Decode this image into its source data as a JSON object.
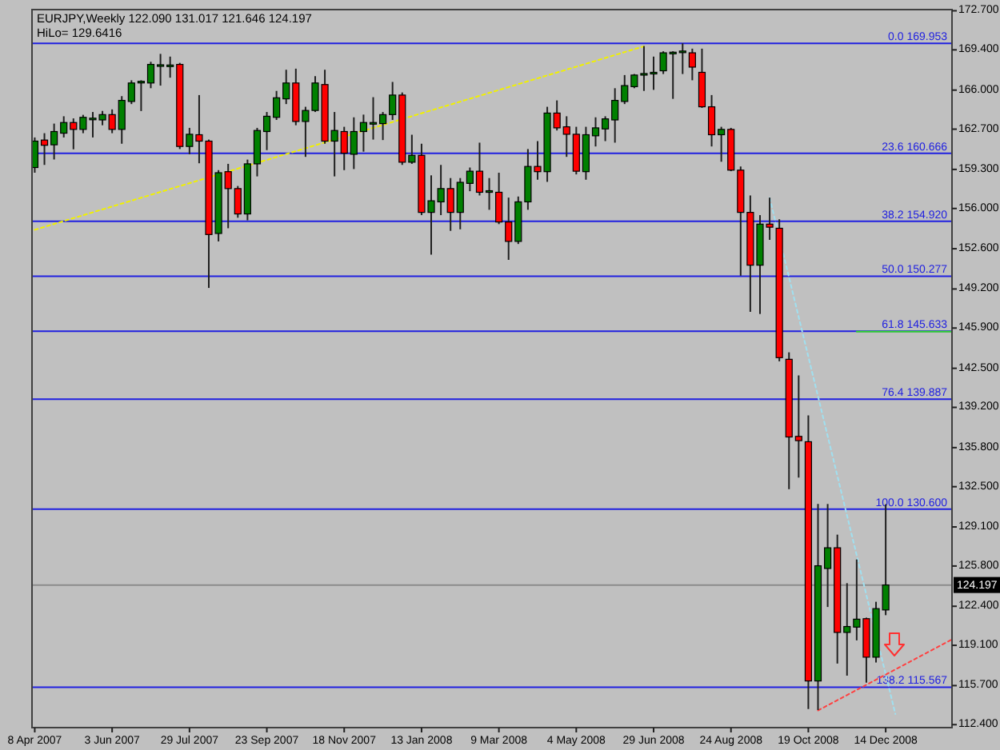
{
  "chart_data": {
    "type": "candlestick",
    "title": "EURJPY,Weekly 122.090 131.017 121.646 124.197",
    "subtitle": "HiLo= 129.6416",
    "x": [
      "2007-04-08",
      "2007-04-15",
      "2007-04-22",
      "2007-04-29",
      "2007-05-06",
      "2007-05-13",
      "2007-05-20",
      "2007-05-27",
      "2007-06-03",
      "2007-06-10",
      "2007-06-17",
      "2007-06-24",
      "2007-07-01",
      "2007-07-08",
      "2007-07-15",
      "2007-07-22",
      "2007-07-29",
      "2007-08-05",
      "2007-08-12",
      "2007-08-19",
      "2007-08-26",
      "2007-09-02",
      "2007-09-09",
      "2007-09-16",
      "2007-09-23",
      "2007-09-30",
      "2007-10-07",
      "2007-10-14",
      "2007-10-21",
      "2007-10-28",
      "2007-11-04",
      "2007-11-11",
      "2007-11-18",
      "2007-11-25",
      "2007-12-02",
      "2007-12-09",
      "2007-12-16",
      "2007-12-23",
      "2007-12-30",
      "2008-01-06",
      "2008-01-13",
      "2008-01-20",
      "2008-01-27",
      "2008-02-03",
      "2008-02-10",
      "2008-02-17",
      "2008-02-24",
      "2008-03-02",
      "2008-03-09",
      "2008-03-16",
      "2008-03-23",
      "2008-03-30",
      "2008-04-06",
      "2008-04-13",
      "2008-04-20",
      "2008-04-27",
      "2008-05-04",
      "2008-05-11",
      "2008-05-18",
      "2008-05-25",
      "2008-06-01",
      "2008-06-08",
      "2008-06-15",
      "2008-06-22",
      "2008-06-29",
      "2008-07-06",
      "2008-07-13",
      "2008-07-20",
      "2008-07-27",
      "2008-08-03",
      "2008-08-10",
      "2008-08-17",
      "2008-08-24",
      "2008-08-31",
      "2008-09-07",
      "2008-09-14",
      "2008-09-21",
      "2008-09-28",
      "2008-10-05",
      "2008-10-12",
      "2008-10-19",
      "2008-10-26",
      "2008-11-02",
      "2008-11-09",
      "2008-11-16",
      "2008-11-23",
      "2008-11-30",
      "2008-12-07",
      "2008-12-14"
    ],
    "ohlc": [
      [
        159.46,
        162.0,
        159.02,
        161.69
      ],
      [
        161.78,
        162.36,
        159.68,
        161.34
      ],
      [
        161.38,
        163.17,
        160.14,
        162.5
      ],
      [
        162.36,
        163.79,
        162.0,
        163.26
      ],
      [
        163.26,
        163.61,
        161.0,
        162.68
      ],
      [
        162.68,
        163.91,
        162.36,
        163.7
      ],
      [
        163.55,
        164.15,
        162.0,
        163.63
      ],
      [
        163.48,
        164.24,
        163.03,
        163.93
      ],
      [
        163.93,
        164.37,
        162.36,
        162.68
      ],
      [
        162.68,
        165.49,
        161.47,
        165.13
      ],
      [
        165.04,
        166.83,
        164.82,
        166.6
      ],
      [
        166.69,
        166.83,
        164.23,
        166.74
      ],
      [
        166.6,
        168.39,
        166.16,
        168.17
      ],
      [
        168.1,
        169.06,
        166.38,
        168.14
      ],
      [
        168.08,
        168.83,
        167.05,
        168.12
      ],
      [
        168.17,
        168.3,
        161.02,
        161.24
      ],
      [
        161.24,
        162.81,
        160.58,
        162.27
      ],
      [
        162.23,
        165.58,
        159.82,
        161.69
      ],
      [
        161.69,
        161.82,
        149.29,
        153.8
      ],
      [
        153.89,
        159.24,
        153.22,
        159.02
      ],
      [
        159.11,
        159.77,
        154.33,
        157.68
      ],
      [
        157.68,
        157.9,
        155.22,
        155.54
      ],
      [
        155.54,
        160.13,
        155.0,
        159.77
      ],
      [
        159.77,
        162.81,
        158.71,
        162.59
      ],
      [
        162.5,
        164.15,
        160.93,
        163.79
      ],
      [
        163.7,
        165.93,
        163.48,
        165.35
      ],
      [
        165.26,
        167.72,
        164.82,
        166.6
      ],
      [
        166.6,
        167.81,
        163.03,
        163.35
      ],
      [
        163.35,
        164.59,
        160.36,
        164.28
      ],
      [
        164.28,
        167.18,
        164.15,
        166.6
      ],
      [
        166.47,
        167.72,
        161.47,
        161.69
      ],
      [
        161.69,
        164.15,
        158.71,
        162.59
      ],
      [
        162.5,
        162.9,
        159.24,
        160.67
      ],
      [
        160.58,
        163.7,
        159.33,
        162.5
      ],
      [
        162.5,
        163.93,
        160.8,
        163.26
      ],
      [
        163.2,
        165.4,
        161.82,
        163.26
      ],
      [
        163.17,
        164.15,
        161.78,
        163.93
      ],
      [
        163.93,
        166.69,
        163.48,
        165.58
      ],
      [
        165.58,
        165.8,
        159.68,
        159.91
      ],
      [
        159.91,
        162.23,
        159.77,
        160.49
      ],
      [
        160.49,
        161.47,
        155.44,
        155.67
      ],
      [
        155.67,
        158.8,
        152.1,
        156.65
      ],
      [
        156.56,
        159.68,
        155.44,
        157.68
      ],
      [
        157.68,
        158.57,
        154.11,
        155.67
      ],
      [
        155.67,
        158.57,
        154.24,
        158.21
      ],
      [
        158.12,
        159.46,
        157.46,
        159.15
      ],
      [
        159.15,
        161.56,
        157.1,
        157.37
      ],
      [
        157.46,
        158.57,
        155.89,
        157.5
      ],
      [
        157.37,
        159.02,
        154.68,
        154.86
      ],
      [
        154.86,
        156.92,
        151.66,
        153.22
      ],
      [
        153.22,
        157.01,
        153.0,
        156.56
      ],
      [
        156.56,
        161.02,
        155.89,
        159.55
      ],
      [
        159.55,
        161.69,
        158.43,
        159.11
      ],
      [
        159.11,
        164.59,
        158.25,
        164.06
      ],
      [
        164.06,
        165.13,
        162.59,
        162.81
      ],
      [
        162.9,
        163.79,
        160.36,
        162.27
      ],
      [
        162.27,
        162.9,
        158.88,
        159.15
      ],
      [
        159.11,
        162.9,
        158.43,
        162.23
      ],
      [
        162.14,
        163.7,
        161.24,
        162.81
      ],
      [
        162.72,
        163.79,
        161.69,
        163.57
      ],
      [
        163.48,
        166.16,
        161.56,
        165.13
      ],
      [
        165.04,
        167.27,
        164.82,
        166.38
      ],
      [
        166.29,
        167.36,
        166.16,
        167.27
      ],
      [
        167.33,
        169.72,
        165.93,
        167.4
      ],
      [
        167.45,
        168.83,
        166.02,
        167.5
      ],
      [
        167.63,
        169.28,
        167.36,
        169.15
      ],
      [
        169.15,
        169.28,
        165.26,
        169.2
      ],
      [
        169.25,
        169.95,
        167.36,
        169.3
      ],
      [
        169.15,
        169.5,
        166.83,
        167.94
      ],
      [
        167.5,
        169.5,
        164.5,
        164.59
      ],
      [
        164.59,
        165.58,
        161.24,
        162.23
      ],
      [
        162.23,
        162.9,
        159.95,
        162.68
      ],
      [
        162.68,
        162.81,
        159.15,
        159.24
      ],
      [
        159.24,
        159.55,
        150.32,
        155.67
      ],
      [
        155.67,
        157.1,
        147.27,
        151.21
      ],
      [
        151.21,
        155.44,
        147.09,
        154.68
      ],
      [
        154.68,
        156.92,
        153.35,
        154.42
      ],
      [
        154.33,
        155.09,
        143.09,
        143.4
      ],
      [
        143.26,
        143.85,
        132.29,
        136.7
      ],
      [
        136.75,
        141.9,
        133.27,
        136.39
      ],
      [
        136.3,
        138.53,
        113.72,
        116.09
      ],
      [
        116.09,
        131.04,
        113.63,
        125.82
      ],
      [
        125.59,
        131.04,
        122.34,
        127.34
      ],
      [
        127.34,
        128.45,
        117.56,
        120.19
      ],
      [
        120.19,
        124.35,
        116.54,
        120.69
      ],
      [
        120.64,
        126.35,
        119.52,
        121.31
      ],
      [
        121.35,
        121.44,
        115.95,
        118.1
      ],
      [
        118.1,
        122.78,
        117.65,
        122.2
      ],
      [
        122.09,
        131.017,
        121.646,
        124.197
      ]
    ],
    "colors": [
      "#008000",
      "#ff0000",
      "#008000",
      "#008000",
      "#ff0000",
      "#008000",
      "#008000",
      "#008000",
      "#ff0000",
      "#008000",
      "#008000",
      "#008000",
      "#008000",
      "#008000",
      "#008000",
      "#ff0000",
      "#008000",
      "#ff0000",
      "#ff0000",
      "#008000",
      "#ff0000",
      "#ff0000",
      "#008000",
      "#008000",
      "#008000",
      "#008000",
      "#008000",
      "#ff0000",
      "#008000",
      "#008000",
      "#ff0000",
      "#008000",
      "#ff0000",
      "#008000",
      "#008000",
      "#008000",
      "#008000",
      "#008000",
      "#ff0000",
      "#008000",
      "#ff0000",
      "#008000",
      "#008000",
      "#ff0000",
      "#008000",
      "#008000",
      "#ff0000",
      "#008000",
      "#ff0000",
      "#ff0000",
      "#008000",
      "#008000",
      "#ff0000",
      "#008000",
      "#ff0000",
      "#ff0000",
      "#ff0000",
      "#008000",
      "#008000",
      "#008000",
      "#008000",
      "#008000",
      "#008000",
      "#008000",
      "#008000",
      "#008000",
      "#008000",
      "#008000",
      "#ff0000",
      "#ff0000",
      "#ff0000",
      "#008000",
      "#ff0000",
      "#ff0000",
      "#ff0000",
      "#008000",
      "#ff0000",
      "#ff0000",
      "#ff0000",
      "#ff0000",
      "#ff0000",
      "#008000",
      "#008000",
      "#ff0000",
      "#008000",
      "#008000",
      "#ff0000",
      "#008000",
      "#008000"
    ],
    "series": [
      {
        "type": "line",
        "x": [
          "2007-04-08",
          "2008-06-22"
        ],
        "values": [
          154.2,
          169.7
        ],
        "color": "#f0f000",
        "line_style": "dotted"
      },
      {
        "type": "line",
        "x": [
          "2008-09-21",
          "2008-12-21"
        ],
        "values": [
          156.9,
          113.3
        ],
        "color": "#a0e0f0",
        "line_style": "dotted"
      },
      {
        "type": "line",
        "x": [
          "2008-10-26",
          "2009-01-31"
        ],
        "values": [
          113.6,
          119.6
        ],
        "color": "#ff4040",
        "line_style": "dotted"
      },
      {
        "type": "line",
        "x": [
          "2008-11-23",
          "2009-01-31"
        ],
        "values": [
          145.6,
          145.6
        ],
        "color": "#30d030",
        "line_style": "solid"
      }
    ],
    "xlim": [
      "2007-04-06",
      "2009-01-31"
    ],
    "ylim": [
      112.15,
      172.8
    ],
    "xticks": [
      {
        "value": "2007-04-08",
        "label": "8 Apr 2007"
      },
      {
        "value": "2007-06-03",
        "label": "3 Jun 2007"
      },
      {
        "value": "2007-07-29",
        "label": "29 Jul 2007"
      },
      {
        "value": "2007-09-23",
        "label": "23 Sep 2007"
      },
      {
        "value": "2007-11-18",
        "label": "18 Nov 2007"
      },
      {
        "value": "2008-01-13",
        "label": "13 Jan 2008"
      },
      {
        "value": "2008-03-09",
        "label": "9 Mar 2008"
      },
      {
        "value": "2008-05-04",
        "label": "4 May 2008"
      },
      {
        "value": "2008-06-29",
        "label": "29 Jun 2008"
      },
      {
        "value": "2008-08-24",
        "label": "24 Aug 2008"
      },
      {
        "value": "2008-10-19",
        "label": "19 Oct 2008"
      },
      {
        "value": "2008-12-14",
        "label": "14 Dec 2008"
      }
    ],
    "yticks": [
      {
        "value": 172.7,
        "label": "172.700"
      },
      {
        "value": 169.4,
        "label": "169.400"
      },
      {
        "value": 166.0,
        "label": "166.000"
      },
      {
        "value": 162.7,
        "label": "162.700"
      },
      {
        "value": 159.3,
        "label": "159.300"
      },
      {
        "value": 156.0,
        "label": "156.000"
      },
      {
        "value": 152.6,
        "label": "152.600"
      },
      {
        "value": 149.2,
        "label": "149.200"
      },
      {
        "value": 145.9,
        "label": "145.900"
      },
      {
        "value": 142.5,
        "label": "142.500"
      },
      {
        "value": 139.2,
        "label": "139.200"
      },
      {
        "value": 135.8,
        "label": "135.800"
      },
      {
        "value": 132.5,
        "label": "132.500"
      },
      {
        "value": 129.1,
        "label": "129.100"
      },
      {
        "value": 125.8,
        "label": "125.800"
      },
      {
        "value": 122.4,
        "label": "122.400"
      },
      {
        "value": 119.1,
        "label": "119.100"
      },
      {
        "value": 115.7,
        "label": "115.700"
      },
      {
        "value": 112.4,
        "label": "112.400"
      }
    ],
    "ref_lines": [
      {
        "axis": "y",
        "value": 169.953,
        "label": "0.0 169.953",
        "color": "#2020e0"
      },
      {
        "axis": "y",
        "value": 160.666,
        "label": "23.6 160.666",
        "color": "#2020e0"
      },
      {
        "axis": "y",
        "value": 154.92,
        "label": "38.2 154.920",
        "color": "#2020e0"
      },
      {
        "axis": "y",
        "value": 150.277,
        "label": "50.0 150.277",
        "color": "#2020e0"
      },
      {
        "axis": "y",
        "value": 145.633,
        "label": "61.8 145.633",
        "color": "#2020e0"
      },
      {
        "axis": "y",
        "value": 139.887,
        "label": "76.4 139.887",
        "color": "#2020e0"
      },
      {
        "axis": "y",
        "value": 130.6,
        "label": "100.0 130.600",
        "color": "#2020e0"
      },
      {
        "axis": "y",
        "value": 115.567,
        "label": "138.2 115.567",
        "color": "#2020e0"
      },
      {
        "axis": "y",
        "value": 124.197,
        "color": "#8c8c8c"
      }
    ],
    "annotations": [
      {
        "text": "124.197",
        "y": 124.197
      }
    ]
  }
}
